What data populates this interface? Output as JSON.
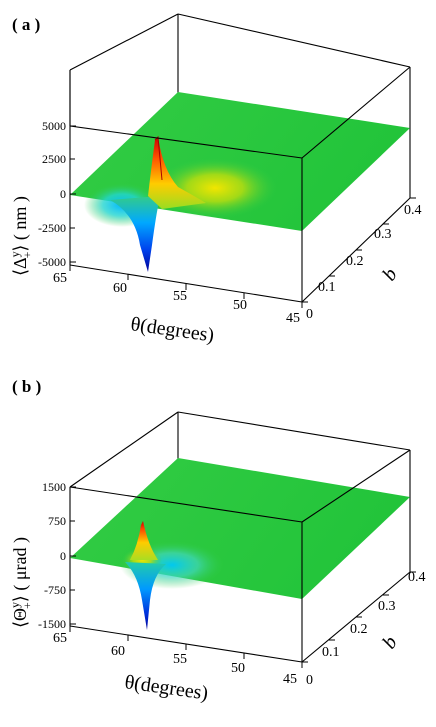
{
  "colors": {
    "background": "#ffffff",
    "axis": "#000000",
    "surface_base": "#33cc33",
    "colormap": [
      "#0000aa",
      "#0066ff",
      "#00ccff",
      "#33cc33",
      "#ffee00",
      "#ff8800",
      "#cc0000"
    ]
  },
  "panels": [
    {
      "label": "( a )",
      "zlabel": "⟨Δ",
      "zlabel_sup": "y",
      "zlabel_sub": "+",
      "zlabel_tail": "⟩ ( nm )",
      "xlabel": "θ(degrees)",
      "ylabel": "b",
      "ztick_labels": [
        "5000",
        "2500",
        "0",
        "-2500",
        "-5000"
      ],
      "xtick_labels": [
        "65",
        "60",
        "55",
        "50",
        "45"
      ],
      "ytick_labels": [
        "0",
        "0.1",
        "0.2",
        "0.3",
        "0.4"
      ]
    },
    {
      "label": "( b )",
      "zlabel": "⟨Θ",
      "zlabel_sup": "y",
      "zlabel_sub": "+",
      "zlabel_tail": "⟩ ( μrad )",
      "xlabel": "θ(degrees)",
      "ylabel": "b",
      "ztick_labels": [
        "1500",
        "750",
        "0",
        "-750",
        "-1500"
      ],
      "xtick_labels": [
        "65",
        "60",
        "55",
        "50",
        "45"
      ],
      "ytick_labels": [
        "0",
        "0.1",
        "0.2",
        "0.3",
        "0.4"
      ]
    }
  ],
  "chart_data": [
    {
      "type": "surface",
      "panel": "( a )",
      "x": {
        "label": "θ(degrees)",
        "range": [
          45,
          65
        ],
        "ticks": [
          65,
          60,
          55,
          50,
          45
        ],
        "reversed": true
      },
      "y": {
        "label": "b",
        "range": [
          0,
          0.4
        ],
        "ticks": [
          0,
          0.1,
          0.2,
          0.3,
          0.4
        ]
      },
      "z": {
        "unit": "nm",
        "range": [
          -5000,
          5000
        ],
        "ticks": [
          5000,
          2500,
          0,
          -2500,
          -5000
        ]
      },
      "features": [
        {
          "kind": "negative_peak",
          "theta": 56.5,
          "b": 0.0,
          "z": -5000
        },
        {
          "kind": "positive_peak",
          "theta": 56.0,
          "b": 0.0,
          "z": 3700
        },
        {
          "kind": "positive_ridge",
          "theta_range": [
            49,
            56
          ],
          "b": 0.05,
          "z": 1500
        }
      ],
      "baseline_z": 0
    },
    {
      "type": "surface",
      "panel": "( b )",
      "x": {
        "label": "θ(degrees)",
        "range": [
          45,
          65
        ],
        "ticks": [
          65,
          60,
          55,
          50,
          45
        ],
        "reversed": true
      },
      "y": {
        "label": "b",
        "range": [
          0,
          0.4
        ],
        "ticks": [
          0,
          0.1,
          0.2,
          0.3,
          0.4
        ]
      },
      "z": {
        "unit": "μrad",
        "range": [
          -1500,
          1500
        ],
        "ticks": [
          1500,
          750,
          0,
          -750,
          -1500
        ]
      },
      "features": [
        {
          "kind": "positive_peak",
          "theta": 56.5,
          "b": 0.0,
          "z": 900
        },
        {
          "kind": "negative_peak",
          "theta": 55.8,
          "b": 0.0,
          "z": -1500
        },
        {
          "kind": "negative_wake",
          "theta_range": [
            50,
            56
          ],
          "b": 0.05,
          "z": -300
        }
      ],
      "baseline_z": 0
    }
  ]
}
